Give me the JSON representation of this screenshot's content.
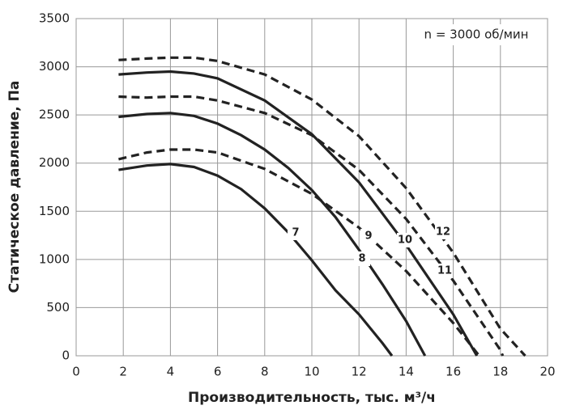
{
  "chart_data": {
    "type": "line",
    "annotation": "n = 3000 об/мин",
    "x_label": "Производительность, тыс. м³/ч",
    "y_label": "Статическое давление, Па",
    "xlim": [
      0,
      20
    ],
    "xticks": [
      0,
      2,
      4,
      6,
      8,
      10,
      12,
      14,
      16,
      18,
      20
    ],
    "ylim": [
      0,
      3500
    ],
    "yticks": [
      0,
      500,
      1000,
      1500,
      2000,
      2500,
      3000,
      3500
    ],
    "grid": true,
    "series": [
      {
        "name": "7",
        "color": "#222222",
        "dashed": false,
        "x": [
          1.8,
          3,
          4,
          5,
          6,
          7,
          8,
          9,
          10,
          11,
          12,
          13,
          13.4
        ],
        "values": [
          1930,
          1975,
          1990,
          1960,
          1870,
          1730,
          1530,
          1280,
          990,
          680,
          430,
          130,
          0
        ]
      },
      {
        "name": "8",
        "color": "#222222",
        "dashed": false,
        "x": [
          1.8,
          3,
          4,
          5,
          6,
          7,
          8,
          9,
          10,
          11,
          12,
          13,
          14,
          14.8
        ],
        "values": [
          2480,
          2510,
          2520,
          2490,
          2410,
          2290,
          2140,
          1950,
          1720,
          1440,
          1100,
          740,
          360,
          0
        ]
      },
      {
        "name": "9",
        "color": "#222222",
        "dashed": true,
        "x": [
          1.8,
          3,
          4,
          5,
          6,
          8,
          10,
          12,
          14,
          16,
          17.1
        ],
        "values": [
          2040,
          2110,
          2140,
          2140,
          2110,
          1940,
          1680,
          1330,
          880,
          340,
          0
        ]
      },
      {
        "name": "10",
        "color": "#222222",
        "dashed": false,
        "x": [
          1.8,
          3,
          4,
          5,
          6,
          8,
          10,
          12,
          14,
          16,
          17
        ],
        "values": [
          2920,
          2940,
          2950,
          2930,
          2880,
          2650,
          2300,
          1800,
          1150,
          430,
          0
        ]
      },
      {
        "name": "11",
        "color": "#222222",
        "dashed": true,
        "x": [
          1.8,
          3,
          4,
          5,
          6,
          8,
          10,
          12,
          14,
          16,
          18,
          18.1
        ],
        "values": [
          2690,
          2680,
          2690,
          2690,
          2650,
          2520,
          2290,
          1930,
          1420,
          780,
          60,
          0
        ]
      },
      {
        "name": "12",
        "color": "#222222",
        "dashed": true,
        "x": [
          1.8,
          3,
          4,
          5,
          6,
          8,
          10,
          12,
          14,
          16,
          18,
          19.05
        ],
        "values": [
          3070,
          3085,
          3095,
          3095,
          3060,
          2920,
          2660,
          2280,
          1740,
          1070,
          280,
          0
        ]
      }
    ]
  }
}
